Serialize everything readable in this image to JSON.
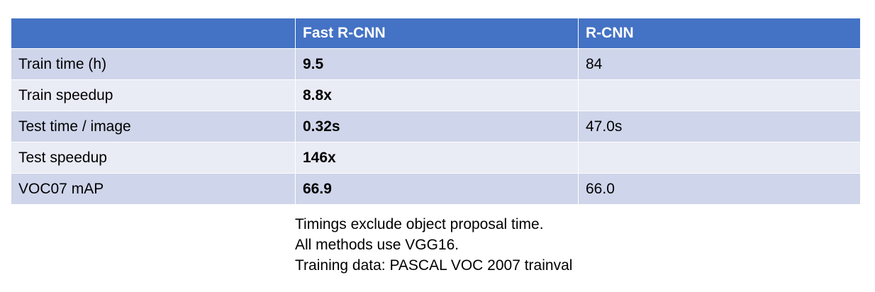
{
  "table": {
    "headers": [
      "",
      "Fast R-CNN",
      "R-CNN"
    ],
    "rows": [
      [
        "Train time (h)",
        "9.5",
        "84"
      ],
      [
        "Train speedup",
        "8.8x",
        ""
      ],
      [
        "Test time / image",
        "0.32s",
        "47.0s"
      ],
      [
        "Test speedup",
        "146x",
        ""
      ],
      [
        "VOC07 mAP",
        "66.9",
        "66.0"
      ]
    ]
  },
  "notes": [
    "Timings exclude object proposal time.",
    "All methods use VGG16.",
    "Training data: PASCAL VOC 2007 trainval"
  ],
  "colors": {
    "header_bg": "#4472c4",
    "row_odd_bg": "#cfd5ea",
    "row_even_bg": "#e9ebf5"
  }
}
